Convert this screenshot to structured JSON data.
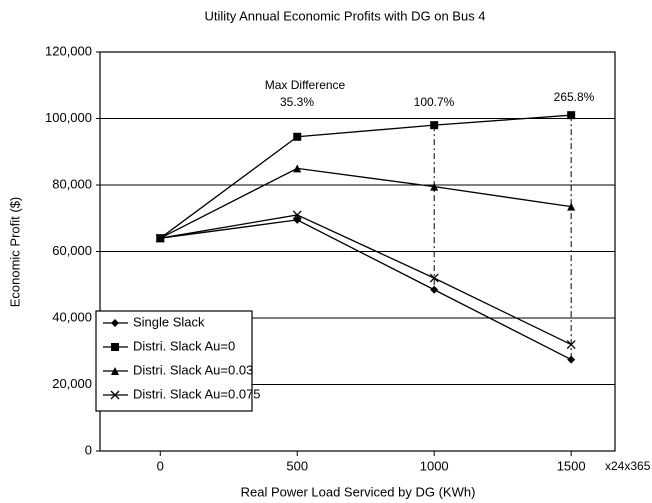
{
  "chart_data": {
    "type": "line",
    "title": "Utility Annual Economic Profits with DG on Bus 4",
    "x_label": "Real Power Load Serviced by DG (KWh)",
    "y_label": "Economic Profit ($)",
    "x_unit": "x24x365",
    "x": [
      0,
      500,
      1000,
      1500
    ],
    "xlim": [
      -220,
      1660
    ],
    "xticks": [
      0,
      500,
      1000,
      1500
    ],
    "ylim": [
      0,
      120000
    ],
    "yticks": [
      0,
      {
        "value": 20000,
        "label": "20,000"
      },
      {
        "value": 40000,
        "label": "40,000"
      },
      {
        "value": 60000,
        "label": "60,000"
      },
      {
        "value": 80000,
        "label": "80,000"
      },
      {
        "value": 100000,
        "label": "100,000"
      },
      {
        "value": 120000,
        "label": "120,000"
      }
    ],
    "grid": true,
    "legend": "lower left",
    "series": [
      {
        "name": "Single Slack",
        "color": "#000000",
        "marker": "diamond",
        "values": [
          64000,
          69500,
          48500,
          27500
        ]
      },
      {
        "name": "Distri. Slack Au=0",
        "color": "#000000",
        "marker": "square",
        "values": [
          64000,
          94500,
          98000,
          101000
        ]
      },
      {
        "name": "Distri. Slack Au=0.03",
        "color": "#000000",
        "marker": "triangle",
        "values": [
          64000,
          85000,
          79500,
          73500
        ]
      },
      {
        "name": "Distri. Slack Au=0.075",
        "color": "#000000",
        "marker": "x",
        "values": [
          64000,
          71000,
          52000,
          32000
        ]
      }
    ],
    "annotations": [
      "Max Difference",
      "35.3%",
      "100.7%",
      "265.8%"
    ]
  }
}
